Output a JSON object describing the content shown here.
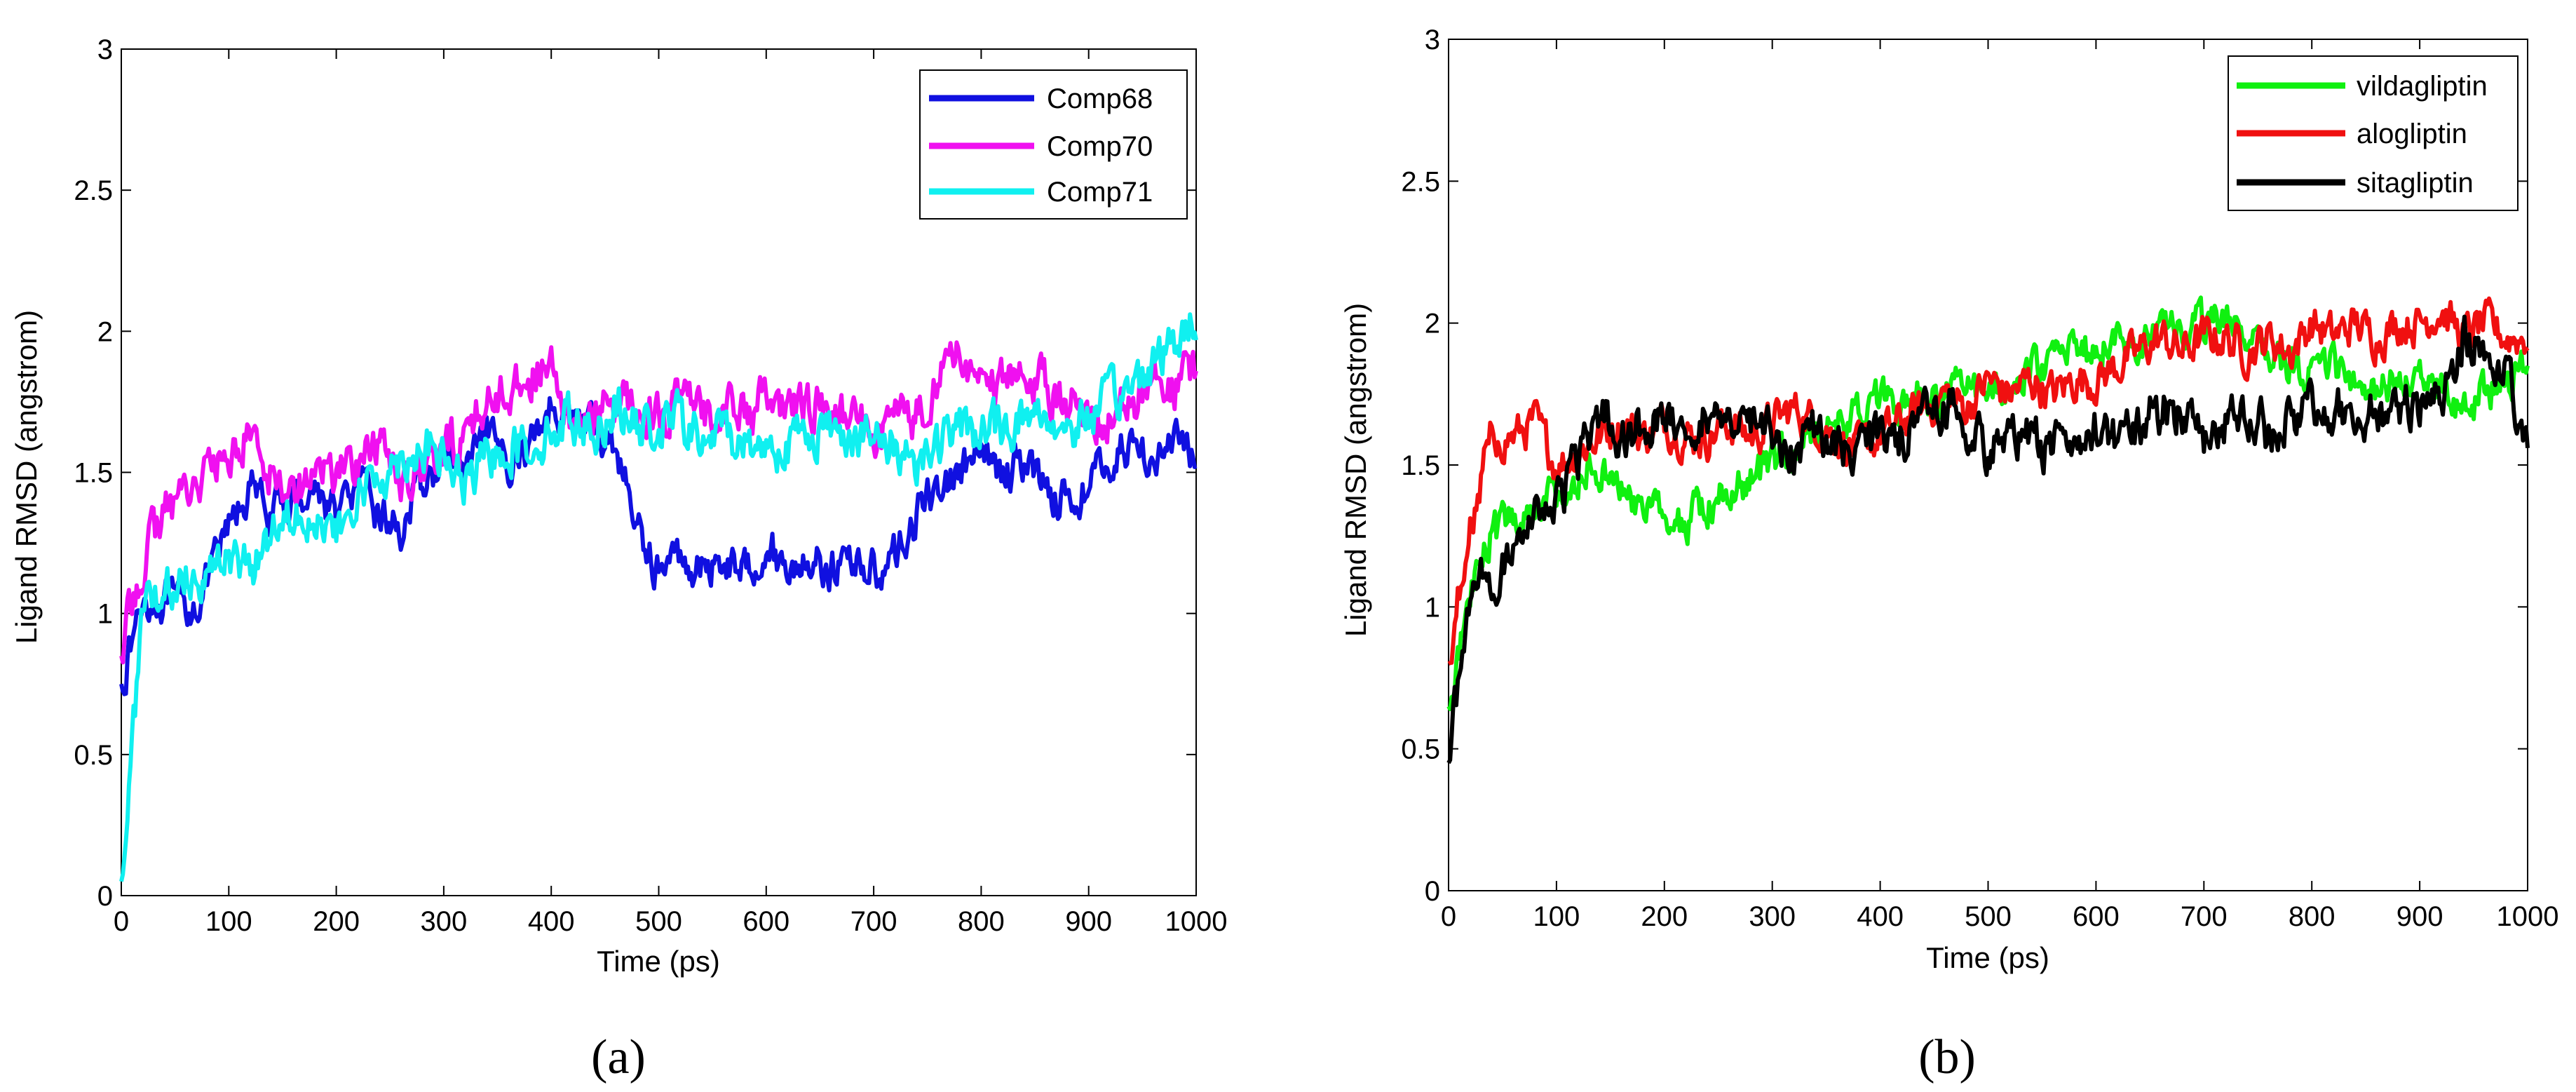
{
  "panels": [
    {
      "id": "a",
      "panel_label": "(a)",
      "xlabel": "Time (ps)",
      "ylabel": "Ligand RMSD (angstrom)",
      "xticks": [
        "0",
        "100",
        "200",
        "300",
        "400",
        "500",
        "600",
        "700",
        "800",
        "900",
        "1000"
      ],
      "yticks": [
        "0",
        "0.5",
        "1",
        "1.5",
        "2",
        "2.5",
        "3"
      ],
      "legend": [
        "Comp68",
        "Comp70",
        "Comp71"
      ]
    },
    {
      "id": "b",
      "panel_label": "(b)",
      "xlabel": "Time (ps)",
      "ylabel": "Ligand RMSD (angstrom)",
      "xticks": [
        "0",
        "100",
        "200",
        "300",
        "400",
        "500",
        "600",
        "700",
        "800",
        "900",
        "1000"
      ],
      "yticks": [
        "0",
        "0.5",
        "1",
        "1.5",
        "2",
        "2.5",
        "3"
      ],
      "legend": [
        "vildagliptin",
        "alogliptin",
        "sitagliptin"
      ]
    }
  ],
  "chart_data": [
    {
      "type": "line",
      "title": "",
      "panel": "(a)",
      "xlabel": "Time (ps)",
      "ylabel": "Ligand RMSD (angstrom)",
      "xlim": [
        0,
        1000
      ],
      "ylim": [
        0,
        3
      ],
      "grid": false,
      "legend_position": "top-right",
      "x": [
        0,
        20,
        40,
        60,
        80,
        100,
        120,
        140,
        160,
        180,
        200,
        220,
        240,
        260,
        280,
        300,
        320,
        340,
        360,
        380,
        400,
        420,
        440,
        460,
        480,
        500,
        520,
        540,
        560,
        580,
        600,
        620,
        640,
        660,
        680,
        700,
        720,
        740,
        760,
        780,
        800,
        820,
        840,
        860,
        880,
        900,
        920,
        940,
        960,
        980,
        1000
      ],
      "series": [
        {
          "name": "Comp68",
          "color": "#1010e0",
          "noise": 0.06,
          "values": [
            0.75,
            1.05,
            1.05,
            1.0,
            1.1,
            1.3,
            1.45,
            1.35,
            1.4,
            1.45,
            1.35,
            1.45,
            1.35,
            1.3,
            1.45,
            1.55,
            1.5,
            1.6,
            1.55,
            1.6,
            1.75,
            1.7,
            1.65,
            1.6,
            1.3,
            1.15,
            1.2,
            1.15,
            1.2,
            1.15,
            1.25,
            1.15,
            1.2,
            1.15,
            1.2,
            1.15,
            1.2,
            1.35,
            1.45,
            1.5,
            1.55,
            1.5,
            1.55,
            1.45,
            1.4,
            1.45,
            1.55,
            1.6,
            1.55,
            1.6,
            1.55
          ]
        },
        {
          "name": "Comp70",
          "color": "#f010f0",
          "noise": 0.07,
          "values": [
            0.85,
            1.2,
            1.35,
            1.45,
            1.5,
            1.55,
            1.65,
            1.5,
            1.45,
            1.5,
            1.5,
            1.55,
            1.6,
            1.5,
            1.5,
            1.55,
            1.65,
            1.75,
            1.8,
            1.85,
            1.85,
            1.65,
            1.7,
            1.75,
            1.75,
            1.7,
            1.75,
            1.7,
            1.75,
            1.7,
            1.75,
            1.7,
            1.75,
            1.7,
            1.7,
            1.6,
            1.7,
            1.7,
            1.85,
            1.9,
            1.85,
            1.8,
            1.85,
            1.8,
            1.75,
            1.7,
            1.7,
            1.75,
            1.8,
            1.8,
            1.85
          ]
        },
        {
          "name": "Comp71",
          "color": "#10f0f0",
          "noise": 0.07,
          "values": [
            0.05,
            1.0,
            1.05,
            1.15,
            1.15,
            1.2,
            1.15,
            1.3,
            1.4,
            1.35,
            1.25,
            1.4,
            1.5,
            1.55,
            1.6,
            1.55,
            1.45,
            1.55,
            1.6,
            1.6,
            1.65,
            1.7,
            1.65,
            1.75,
            1.65,
            1.65,
            1.7,
            1.6,
            1.65,
            1.6,
            1.6,
            1.6,
            1.65,
            1.65,
            1.65,
            1.6,
            1.6,
            1.55,
            1.6,
            1.65,
            1.65,
            1.65,
            1.7,
            1.7,
            1.65,
            1.7,
            1.75,
            1.8,
            1.9,
            1.95,
            2.05
          ]
        }
      ]
    },
    {
      "type": "line",
      "title": "",
      "panel": "(b)",
      "xlabel": "Time (ps)",
      "ylabel": "Ligand RMSD (angstrom)",
      "xlim": [
        0,
        1000
      ],
      "ylim": [
        0,
        3
      ],
      "grid": false,
      "legend_position": "top-right",
      "x": [
        0,
        20,
        40,
        60,
        80,
        100,
        120,
        140,
        160,
        180,
        200,
        220,
        240,
        260,
        280,
        300,
        320,
        340,
        360,
        380,
        400,
        420,
        440,
        460,
        480,
        500,
        520,
        540,
        560,
        580,
        600,
        620,
        640,
        660,
        680,
        700,
        720,
        740,
        760,
        780,
        800,
        820,
        840,
        860,
        880,
        900,
        920,
        940,
        960,
        980,
        1000
      ],
      "series": [
        {
          "name": "vildagliptin",
          "color": "#10f010",
          "noise": 0.06,
          "values": [
            0.65,
            1.05,
            1.25,
            1.3,
            1.35,
            1.4,
            1.45,
            1.5,
            1.4,
            1.35,
            1.3,
            1.3,
            1.35,
            1.4,
            1.45,
            1.5,
            1.55,
            1.6,
            1.65,
            1.7,
            1.75,
            1.7,
            1.75,
            1.7,
            1.8,
            1.75,
            1.8,
            1.85,
            1.85,
            1.9,
            1.9,
            1.95,
            1.95,
            2.0,
            1.95,
            2.0,
            2.0,
            1.95,
            1.9,
            1.85,
            1.8,
            1.85,
            1.8,
            1.75,
            1.8,
            1.8,
            1.75,
            1.7,
            1.75,
            1.8,
            1.85
          ]
        },
        {
          "name": "alogliptin",
          "color": "#f01010",
          "noise": 0.06,
          "values": [
            0.8,
            1.3,
            1.6,
            1.6,
            1.65,
            1.5,
            1.55,
            1.6,
            1.65,
            1.6,
            1.65,
            1.6,
            1.6,
            1.65,
            1.6,
            1.65,
            1.7,
            1.65,
            1.6,
            1.55,
            1.6,
            1.65,
            1.7,
            1.75,
            1.7,
            1.8,
            1.75,
            1.8,
            1.75,
            1.8,
            1.8,
            1.85,
            1.9,
            1.95,
            1.9,
            1.95,
            1.95,
            1.9,
            1.95,
            1.9,
            2.0,
            1.95,
            2.0,
            1.95,
            2.0,
            2.0,
            2.05,
            1.95,
            2.0,
            1.95,
            1.95
          ]
        },
        {
          "name": "sitagliptin",
          "color": "#000000",
          "noise": 0.07,
          "values": [
            0.45,
            1.05,
            1.1,
            1.2,
            1.3,
            1.35,
            1.5,
            1.7,
            1.6,
            1.65,
            1.7,
            1.65,
            1.7,
            1.6,
            1.65,
            1.6,
            1.55,
            1.6,
            1.55,
            1.55,
            1.6,
            1.6,
            1.65,
            1.7,
            1.65,
            1.55,
            1.6,
            1.6,
            1.55,
            1.6,
            1.65,
            1.6,
            1.65,
            1.7,
            1.7,
            1.6,
            1.65,
            1.7,
            1.6,
            1.65,
            1.7,
            1.7,
            1.65,
            1.7,
            1.7,
            1.7,
            1.75,
            1.95,
            1.9,
            1.8,
            1.55
          ]
        }
      ]
    }
  ]
}
